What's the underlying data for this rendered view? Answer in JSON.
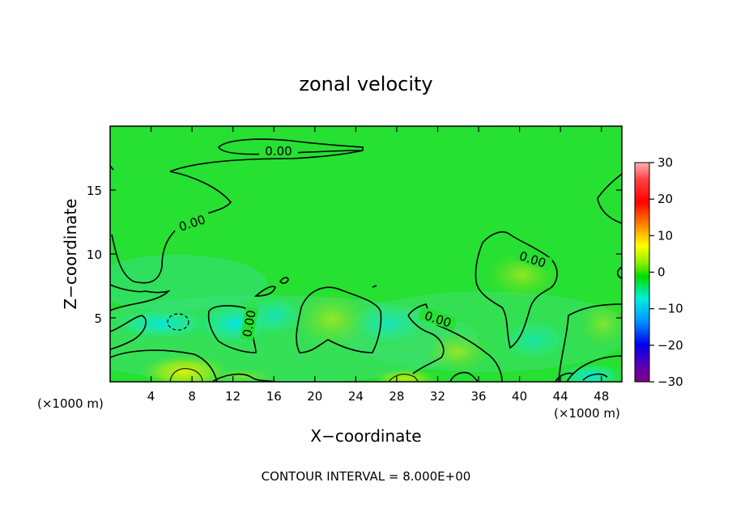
{
  "chart_data": {
    "type": "heatmap",
    "title": "zonal velocity",
    "xlabel": "X−coordinate",
    "ylabel": "Z−coordinate",
    "x_unit_left": "(×1000 m)",
    "x_unit_right": "(×1000 m)",
    "xlim": [
      0,
      50
    ],
    "ylim": [
      0,
      20
    ],
    "x_ticks": [
      4,
      8,
      12,
      16,
      20,
      24,
      28,
      32,
      36,
      40,
      44,
      48
    ],
    "y_ticks": [
      5,
      10,
      15
    ],
    "colorbar": {
      "range": [
        -30,
        30
      ],
      "ticks": [
        30,
        20,
        10,
        0,
        -10,
        -20,
        -30
      ],
      "tick_labels": [
        "30",
        "20",
        "10",
        "0",
        "−10",
        "−20",
        "−30"
      ],
      "colors": [
        "#ff9e9e",
        "#ff0000",
        "#ff9900",
        "#ffff00",
        "#88ee00",
        "#00dd00",
        "#00eedd",
        "#0099ff",
        "#0000ff",
        "#6600aa",
        "#800080"
      ]
    },
    "contour_labels": [
      "0.00",
      "0.00",
      "0.00",
      "0.00",
      "0.00"
    ],
    "contour_interval": "CONTOUR INTERVAL = 8.000E+00",
    "field_samples": [
      {
        "x": 3.0,
        "z": 6.5,
        "value": -3
      },
      {
        "x": 6.5,
        "z": 4.8,
        "value": -9
      },
      {
        "x": 14.0,
        "z": 4.0,
        "value": -4
      },
      {
        "x": 7.0,
        "z": 0.8,
        "value": 6
      },
      {
        "x": 21.0,
        "z": 5.0,
        "value": 4
      },
      {
        "x": 29.0,
        "z": 0.4,
        "value": 5
      },
      {
        "x": 34.0,
        "z": 2.0,
        "value": 4
      },
      {
        "x": 40.0,
        "z": 8.0,
        "value": 4
      },
      {
        "x": 47.0,
        "z": 0.4,
        "value": -8
      },
      {
        "x": 25.0,
        "z": 15.0,
        "value": 0
      }
    ]
  }
}
